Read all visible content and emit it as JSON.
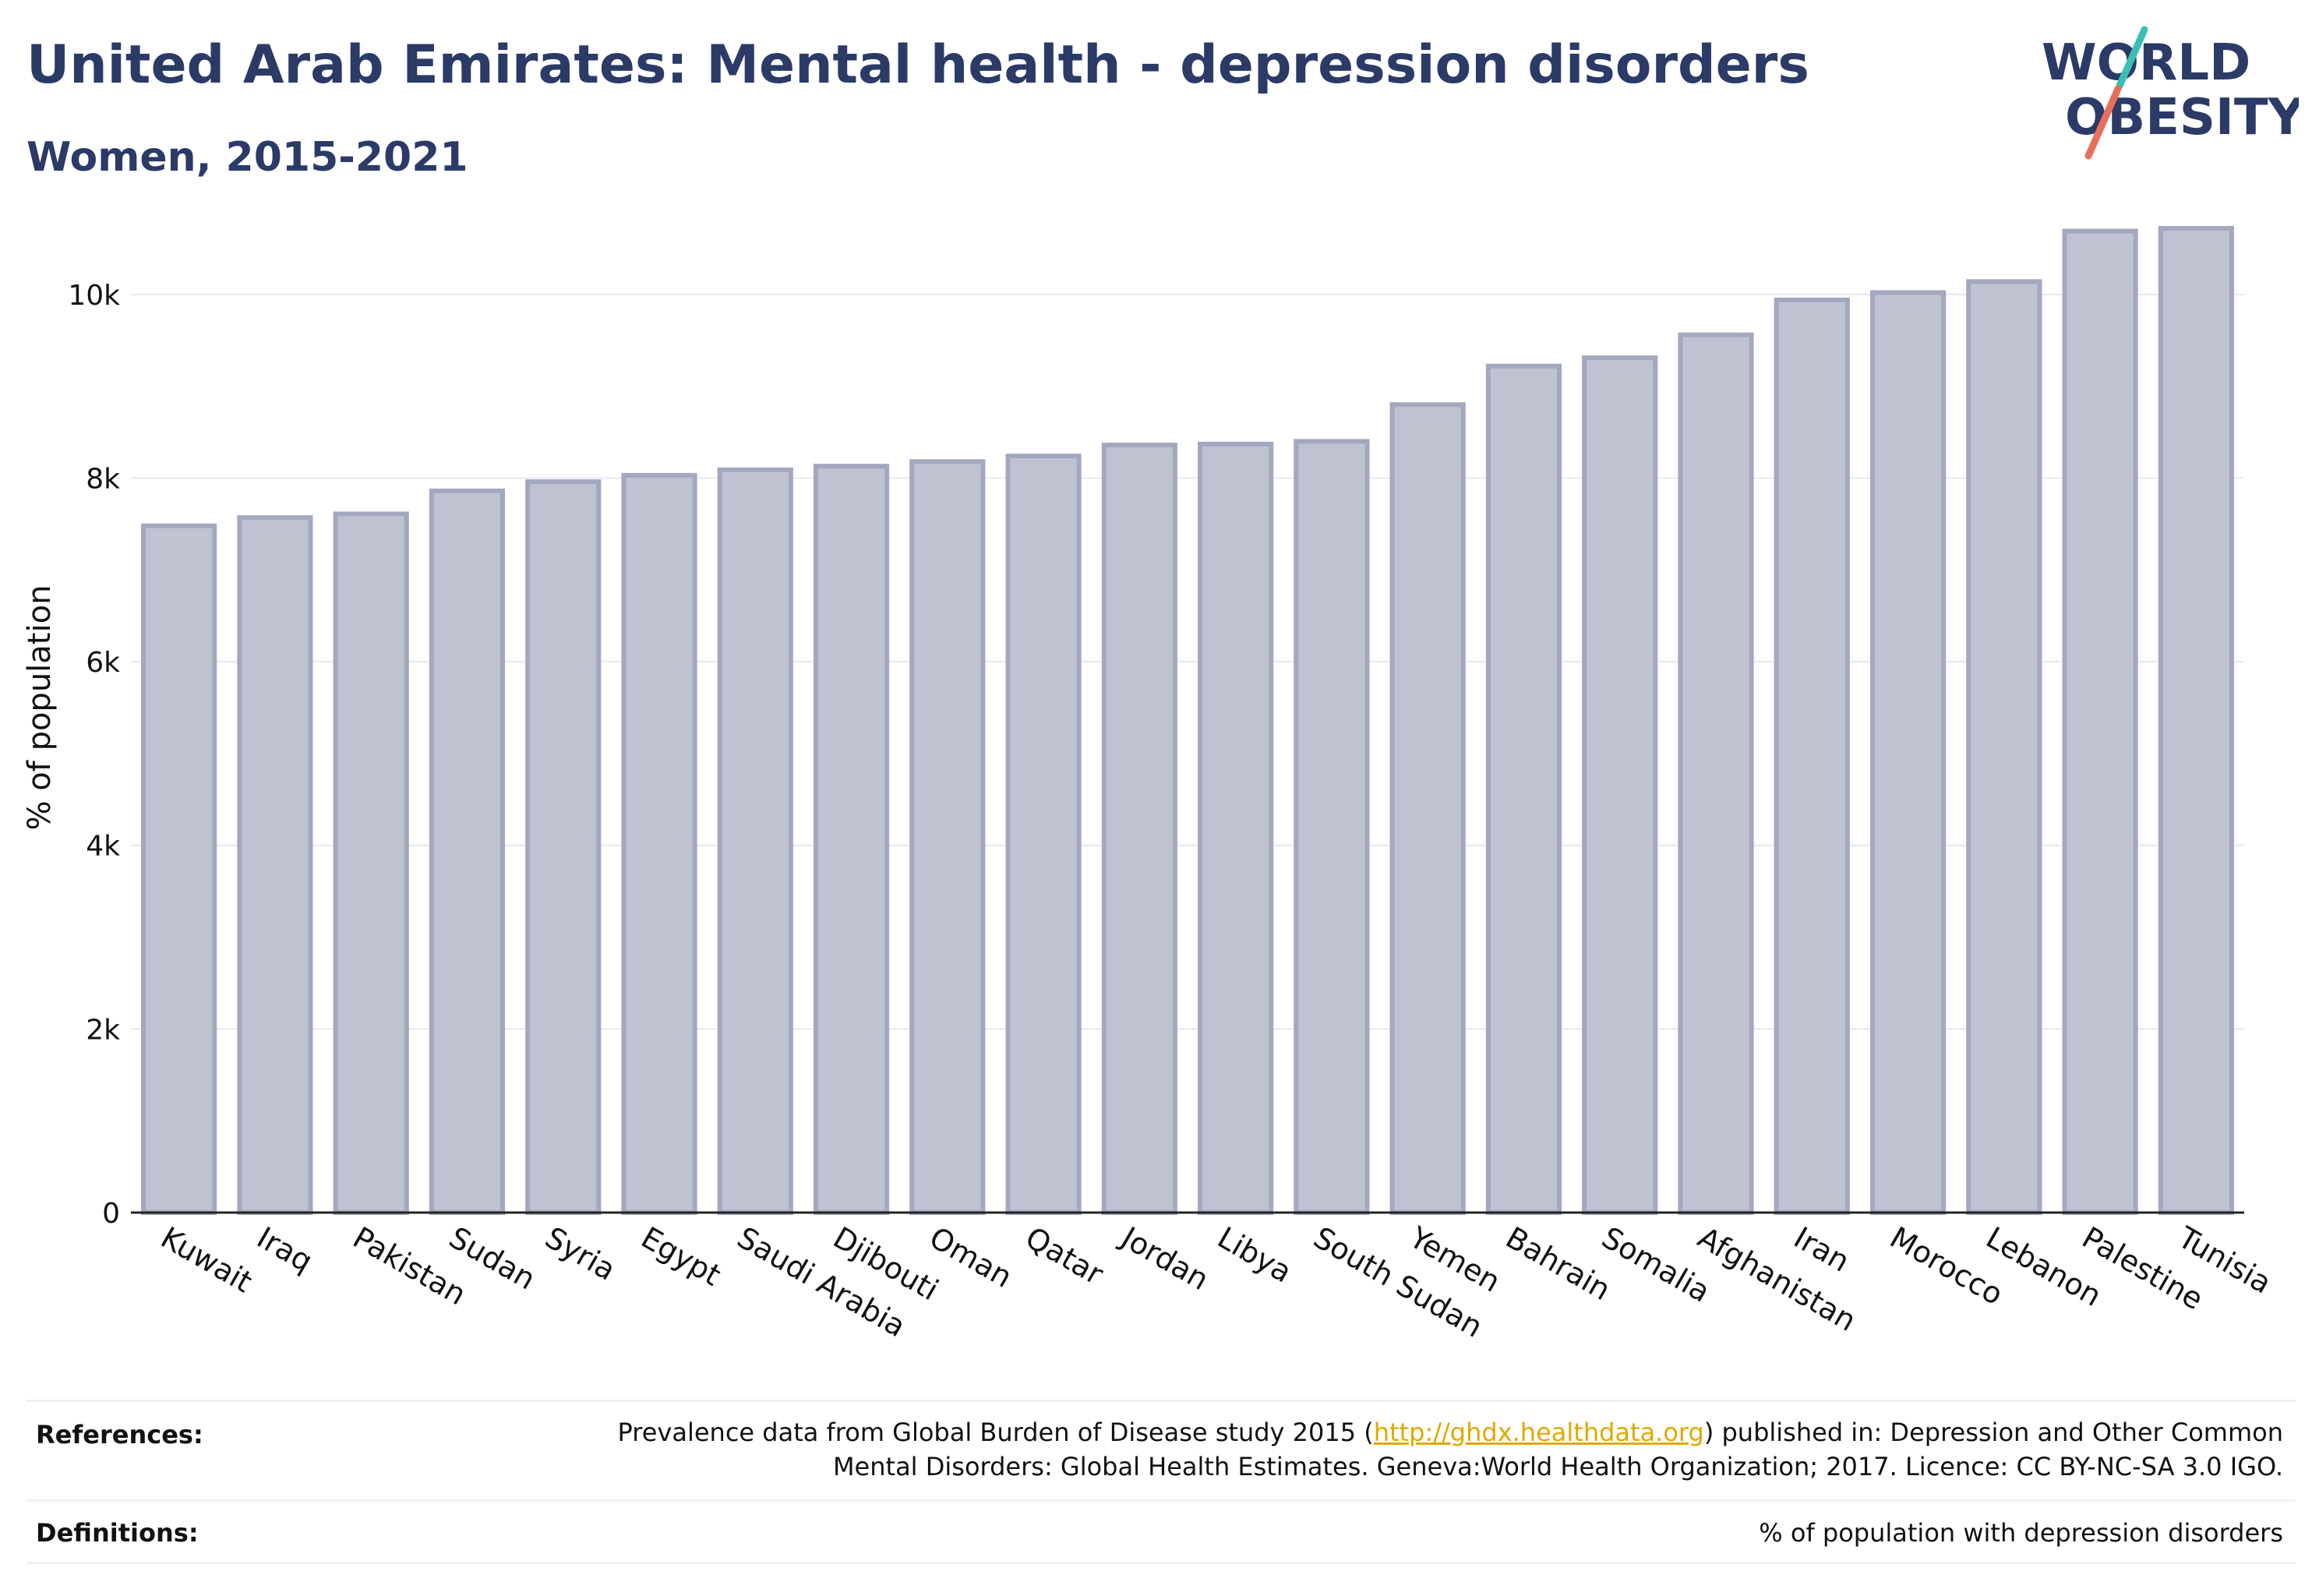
{
  "header": {
    "title": "United Arab Emirates: Mental health - depression disorders",
    "subtitle": "Women, 2015-2021"
  },
  "logo": {
    "line1": "WORLD",
    "line2": "OBESITY",
    "colors": {
      "text": "#2b3a67",
      "slash_top": "#3bbfb5",
      "slash_bottom": "#e8705a"
    }
  },
  "chart_data": {
    "type": "bar",
    "categories": [
      "Kuwait",
      "Iraq",
      "Pakistan",
      "Sudan",
      "Syria",
      "Egypt",
      "Saudi Arabia",
      "Djibouti",
      "Oman",
      "Qatar",
      "Jordan",
      "Libya",
      "South Sudan",
      "Yemen",
      "Bahrain",
      "Somalia",
      "Afghanistan",
      "Iran",
      "Morocco",
      "Lebanon",
      "Palestine",
      "Tunisia"
    ],
    "values": [
      7480,
      7570,
      7610,
      7860,
      7960,
      8030,
      8090,
      8130,
      8180,
      8240,
      8360,
      8370,
      8400,
      8800,
      9220,
      9310,
      9560,
      9940,
      10020,
      10140,
      10690,
      10720
    ],
    "ylabel": "% of population",
    "ylim": [
      0,
      11000
    ],
    "yticks": [
      0,
      2000,
      4000,
      6000,
      8000,
      10000
    ],
    "ytick_labels": [
      "0",
      "2k",
      "4k",
      "6k",
      "8k",
      "10k"
    ],
    "grid": true,
    "bar_fill": "#bfc2d0",
    "bar_stroke": "#a3a8bf"
  },
  "footer": {
    "references_label": "References:",
    "references_text_before": "Prevalence data from Global Burden of Disease study 2015 (",
    "references_link": "http://ghdx.healthdata.org",
    "references_text_after": ") published in: Depression and Other Common Mental Disorders: Global Health Estimates. Geneva:World Health Organization; 2017. Licence: CC BY-NC-SA 3.0 IGO.",
    "definitions_label": "Definitions:",
    "definitions_text": "% of population with depression disorders"
  }
}
